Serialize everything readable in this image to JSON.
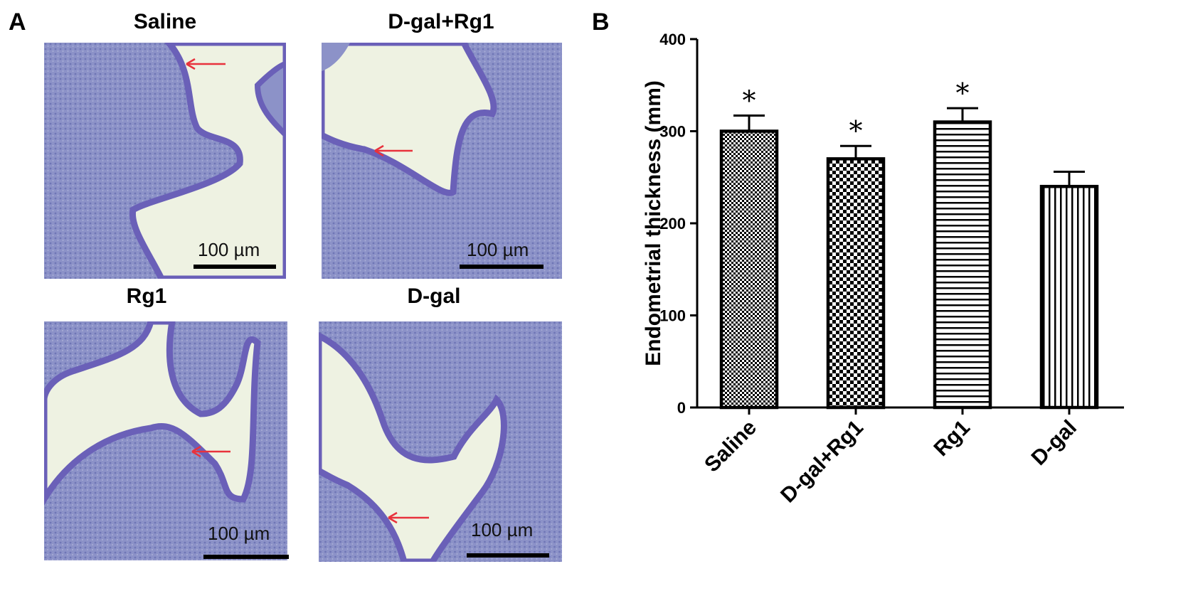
{
  "panel_a": {
    "letter": "A",
    "images": [
      {
        "title": "Saline",
        "scale_label": "100 µm"
      },
      {
        "title": "D-gal+Rg1",
        "scale_label": "100 µm"
      },
      {
        "title": "Rg1",
        "scale_label": "100 µm"
      },
      {
        "title": "D-gal",
        "scale_label": "100 µm"
      }
    ],
    "colors": {
      "tissue": "#8c92c8",
      "epithelium": "#6a60b8",
      "lumen": "#eef2e2",
      "arrow": "#e8323c"
    }
  },
  "panel_b": {
    "letter": "B"
  },
  "chart_data": {
    "type": "bar",
    "categories": [
      "Saline",
      "D-gal+Rg1",
      "Rg1",
      "D-gal"
    ],
    "values": [
      300,
      270,
      310,
      240
    ],
    "errors": [
      17,
      14,
      15,
      16
    ],
    "significance": [
      "*",
      "*",
      "*",
      ""
    ],
    "patterns": [
      "checker-fine",
      "checker-coarse",
      "horizontal-lines",
      "vertical-lines"
    ],
    "title": "",
    "xlabel": "",
    "ylabel": "Endometrial thickness (mm)",
    "ylim": [
      0,
      400
    ],
    "yticks": [
      0,
      100,
      200,
      300,
      400
    ],
    "grid": false,
    "bar_color": "#000000"
  }
}
